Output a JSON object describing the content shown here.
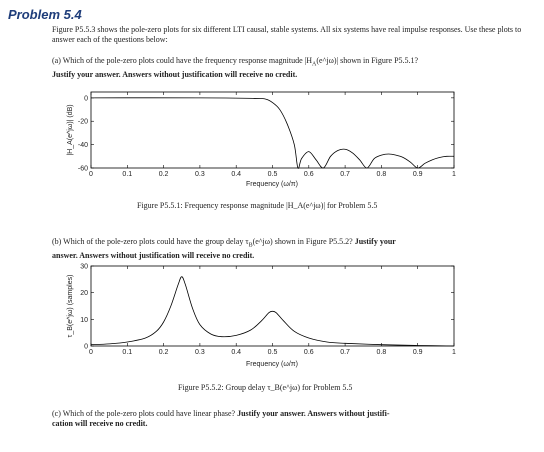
{
  "problem_title": "Problem 5.4",
  "intro": "Figure P5.5.3 shows the pole-zero plots for six different LTI causal, stable systems. All six systems have real impulse responses. Use these plots to answer each of the questions below:",
  "part_a": {
    "prefix": "(a) Which of the pole-zero plots could have the frequency response magnitude |H",
    "sub": "A",
    "suffix": "(e^jω)| shown in Figure P5.5.1?",
    "justify": "Justify your answer. Answers without justification will receive no credit."
  },
  "part_b": {
    "prefix": "(b) Which of the pole-zero plots could have the group delay τ",
    "sub": "B",
    "suffix": "(e^jω) shown in Figure P5.5.2?",
    "justify_inline": "Justify your",
    "justify_rest": "answer. Answers without justification will receive no credit."
  },
  "part_c": {
    "text": "(c) Which of the pole-zero plots could have linear phase?",
    "justify": "Justify your answer. Answers without justifi-",
    "justify_rest": "cation will receive no credit."
  },
  "figure1": {
    "caption": "Figure P5.5.1: Frequency response magnitude |H_A(e^jω)| for Problem 5.5",
    "ylabel": "|H_A(e^jω)| (dB)",
    "xlabel": "Frequency (ω/π)",
    "xticks": [
      "0",
      "0.1",
      "0.2",
      "0.3",
      "0.4",
      "0.5",
      "0.6",
      "0.7",
      "0.8",
      "0.9",
      "1"
    ],
    "yticks": [
      "0",
      "-20",
      "-40",
      "-60"
    ]
  },
  "figure2": {
    "caption": "Figure P5.5.2: Group delay τ_B(e^jω) for Problem 5.5",
    "ylabel": "τ_B(e^jω) (samples)",
    "xlabel": "Frequency (ω/π)",
    "xticks": [
      "0",
      "0.1",
      "0.2",
      "0.3",
      "0.4",
      "0.5",
      "0.6",
      "0.7",
      "0.8",
      "0.9",
      "1"
    ],
    "yticks": [
      "0",
      "10",
      "20",
      "30"
    ]
  },
  "chart_data": [
    {
      "type": "line",
      "xlabel": "Frequency (ω/π)",
      "ylabel": "|H_A(e^jω)| (dB)",
      "xlim": [
        0,
        1
      ],
      "ylim": [
        -60,
        5
      ],
      "series": [
        {
          "x": [
            0,
            0.3,
            0.45,
            0.48,
            0.5,
            0.52,
            0.54,
            0.56,
            0.57,
            0.58,
            0.6,
            0.62,
            0.64,
            0.66,
            0.68,
            0.7,
            0.72,
            0.74,
            0.76,
            0.78,
            0.8,
            0.82,
            0.84,
            0.86,
            0.88,
            0.9,
            0.92,
            0.94,
            0.96,
            0.98,
            1.0
          ],
          "y": [
            0,
            0,
            -0.5,
            -1,
            -4,
            -10,
            -22,
            -40,
            -60,
            -52,
            -46,
            -53,
            -60,
            -50,
            -45,
            -44,
            -47,
            -53,
            -60,
            -52,
            -49,
            -48,
            -49,
            -51,
            -55,
            -60,
            -56,
            -53,
            -51,
            -50,
            -50
          ]
        }
      ]
    },
    {
      "type": "line",
      "xlabel": "Frequency (ω/π)",
      "ylabel": "τ_B(e^jω) (samples)",
      "xlim": [
        0,
        1
      ],
      "ylim": [
        0,
        30
      ],
      "series": [
        {
          "x": [
            0,
            0.05,
            0.1,
            0.15,
            0.18,
            0.2,
            0.22,
            0.24,
            0.25,
            0.26,
            0.28,
            0.3,
            0.33,
            0.36,
            0.4,
            0.44,
            0.47,
            0.49,
            0.5,
            0.51,
            0.53,
            0.56,
            0.6,
            0.65,
            0.7,
            0.8,
            0.9,
            1.0
          ],
          "y": [
            0.5,
            0.8,
            1.5,
            3,
            5.5,
            9,
            15,
            23,
            26,
            23,
            14,
            8,
            4.5,
            3.5,
            4,
            6,
            9.5,
            12.5,
            13,
            12.5,
            9.5,
            5.5,
            3,
            1.5,
            1,
            0.5,
            0.2,
            0
          ]
        }
      ]
    }
  ]
}
